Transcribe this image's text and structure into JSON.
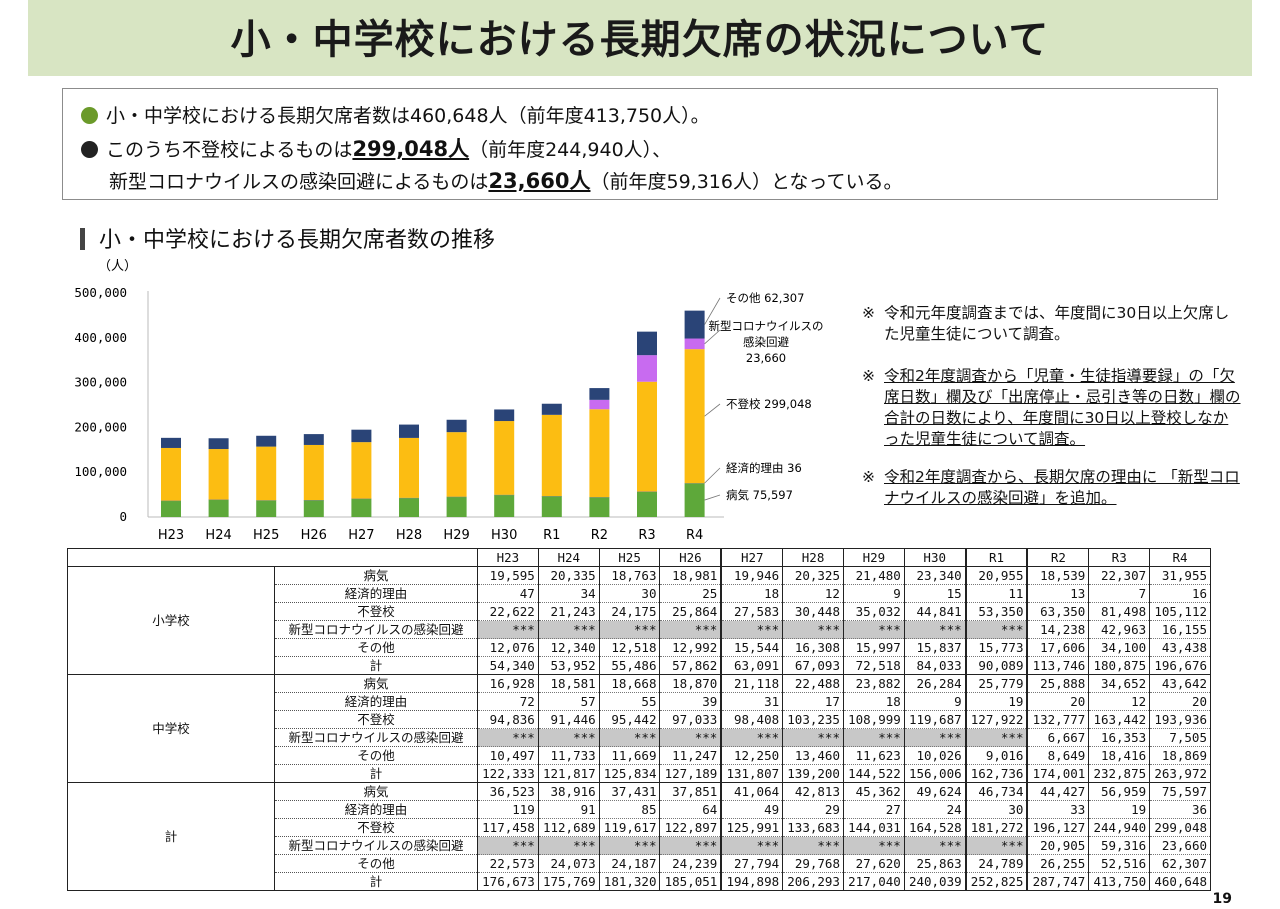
{
  "title": "小・中学校における長期欠席の状況について",
  "summary": {
    "line1": "小・中学校における長期欠席者数は460,648人（前年度413,750人）。",
    "line2_pre": "このうち不登校によるものは",
    "line2_big": "299,048人",
    "line2_post": "（前年度244,940人）、",
    "line3_pre": "新型コロナウイルスの感染回避によるものは",
    "line3_big": "23,660人",
    "line3_post": "（前年度59,316人）となっている。"
  },
  "section_title": "小・中学校における長期欠席者数の推移",
  "notes": [
    {
      "mark": "※",
      "text": "令和元年度調査までは、年度間に30日以上欠席した児童生徒について調査。",
      "underline": false
    },
    {
      "mark": "※",
      "text": "令和2年度調査から「児童・生徒指導要録」の「欠席日数」欄及び「出席停止・忌引き等の日数」欄の合計の日数により、年度間に30日以上登校しなかった児童生徒について調査。",
      "underline": true
    },
    {
      "mark": "※",
      "text": "令和2年度調査から、長期欠席の理由に 「新型コロナウイルスの感染回避」を追加。",
      "underline": true
    }
  ],
  "chart_data": {
    "type": "bar",
    "stacked": true,
    "unit_label": "（人）",
    "categories": [
      "H23",
      "H24",
      "H25",
      "H26",
      "H27",
      "H28",
      "H29",
      "H30",
      "R1",
      "R2",
      "R3",
      "R4"
    ],
    "yticks": [
      "0",
      "100,000",
      "200,000",
      "300,000",
      "400,000",
      "500,000"
    ],
    "ylim": [
      0,
      500000
    ],
    "series": [
      {
        "name": "病気",
        "color": "#5ea83a",
        "values": [
          36523,
          38916,
          37431,
          37851,
          41064,
          42813,
          45362,
          49624,
          46734,
          44427,
          56959,
          75597
        ]
      },
      {
        "name": "経済的理由",
        "color": "#8a8a8a",
        "values": [
          119,
          91,
          85,
          64,
          49,
          29,
          27,
          24,
          30,
          33,
          19,
          36
        ]
      },
      {
        "name": "不登校",
        "color": "#fcbd12",
        "values": [
          117458,
          112689,
          119617,
          122897,
          125991,
          133683,
          144031,
          164528,
          181272,
          196127,
          244940,
          299048
        ]
      },
      {
        "name": "新型コロナウイルスの感染回避",
        "color": "#c86bf0",
        "values": [
          0,
          0,
          0,
          0,
          0,
          0,
          0,
          0,
          0,
          20905,
          59316,
          23660
        ]
      },
      {
        "name": "その他",
        "color": "#2a4477",
        "values": [
          22573,
          24073,
          24187,
          24239,
          27794,
          29768,
          27620,
          25863,
          24789,
          26255,
          52516,
          62307
        ]
      }
    ],
    "annotations": [
      {
        "series": "その他",
        "text": "その他 62,307"
      },
      {
        "series": "新型コロナウイルスの感染回避",
        "lines": [
          "新型コロナウイルスの",
          "感染回避",
          "23,660"
        ]
      },
      {
        "series": "不登校",
        "text": "不登校 299,048"
      },
      {
        "series": "経済的理由",
        "text": "経済的理由 36"
      },
      {
        "series": "病気",
        "text": "病気 75,597"
      }
    ]
  },
  "table": {
    "years": [
      "H23",
      "H24",
      "H25",
      "H26",
      "H27",
      "H28",
      "H29",
      "H30",
      "R1",
      "R2",
      "R3",
      "R4"
    ],
    "groups": [
      {
        "name": "小学校",
        "rows": [
          {
            "label": "病気",
            "values": [
              "19,595",
              "20,335",
              "18,763",
              "18,981",
              "19,946",
              "20,325",
              "21,480",
              "23,340",
              "20,955",
              "18,539",
              "22,307",
              "31,955"
            ]
          },
          {
            "label": "経済的理由",
            "values": [
              "47",
              "34",
              "30",
              "25",
              "18",
              "12",
              "9",
              "15",
              "11",
              "13",
              "7",
              "16"
            ]
          },
          {
            "label": "不登校",
            "values": [
              "22,622",
              "21,243",
              "24,175",
              "25,864",
              "27,583",
              "30,448",
              "35,032",
              "44,841",
              "53,350",
              "63,350",
              "81,498",
              "105,112"
            ]
          },
          {
            "label": "新型コロナウイルスの感染回避",
            "values": [
              "***",
              "***",
              "***",
              "***",
              "***",
              "***",
              "***",
              "***",
              "***",
              "14,238",
              "42,963",
              "16,155"
            ]
          },
          {
            "label": "その他",
            "values": [
              "12,076",
              "12,340",
              "12,518",
              "12,992",
              "15,544",
              "16,308",
              "15,997",
              "15,837",
              "15,773",
              "17,606",
              "34,100",
              "43,438"
            ]
          },
          {
            "label": "計",
            "values": [
              "54,340",
              "53,952",
              "55,486",
              "57,862",
              "63,091",
              "67,093",
              "72,518",
              "84,033",
              "90,089",
              "113,746",
              "180,875",
              "196,676"
            ]
          }
        ]
      },
      {
        "name": "中学校",
        "rows": [
          {
            "label": "病気",
            "values": [
              "16,928",
              "18,581",
              "18,668",
              "18,870",
              "21,118",
              "22,488",
              "23,882",
              "26,284",
              "25,779",
              "25,888",
              "34,652",
              "43,642"
            ]
          },
          {
            "label": "経済的理由",
            "values": [
              "72",
              "57",
              "55",
              "39",
              "31",
              "17",
              "18",
              "9",
              "19",
              "20",
              "12",
              "20"
            ]
          },
          {
            "label": "不登校",
            "values": [
              "94,836",
              "91,446",
              "95,442",
              "97,033",
              "98,408",
              "103,235",
              "108,999",
              "119,687",
              "127,922",
              "132,777",
              "163,442",
              "193,936"
            ]
          },
          {
            "label": "新型コロナウイルスの感染回避",
            "values": [
              "***",
              "***",
              "***",
              "***",
              "***",
              "***",
              "***",
              "***",
              "***",
              "6,667",
              "16,353",
              "7,505"
            ]
          },
          {
            "label": "その他",
            "values": [
              "10,497",
              "11,733",
              "11,669",
              "11,247",
              "12,250",
              "13,460",
              "11,623",
              "10,026",
              "9,016",
              "8,649",
              "18,416",
              "18,869"
            ]
          },
          {
            "label": "計",
            "values": [
              "122,333",
              "121,817",
              "125,834",
              "127,189",
              "131,807",
              "139,200",
              "144,522",
              "156,006",
              "162,736",
              "174,001",
              "232,875",
              "263,972"
            ]
          }
        ]
      },
      {
        "name": "計",
        "rows": [
          {
            "label": "病気",
            "values": [
              "36,523",
              "38,916",
              "37,431",
              "37,851",
              "41,064",
              "42,813",
              "45,362",
              "49,624",
              "46,734",
              "44,427",
              "56,959",
              "75,597"
            ]
          },
          {
            "label": "経済的理由",
            "values": [
              "119",
              "91",
              "85",
              "64",
              "49",
              "29",
              "27",
              "24",
              "30",
              "33",
              "19",
              "36"
            ]
          },
          {
            "label": "不登校",
            "values": [
              "117,458",
              "112,689",
              "119,617",
              "122,897",
              "125,991",
              "133,683",
              "144,031",
              "164,528",
              "181,272",
              "196,127",
              "244,940",
              "299,048"
            ]
          },
          {
            "label": "新型コロナウイルスの感染回避",
            "values": [
              "***",
              "***",
              "***",
              "***",
              "***",
              "***",
              "***",
              "***",
              "***",
              "20,905",
              "59,316",
              "23,660"
            ]
          },
          {
            "label": "その他",
            "values": [
              "22,573",
              "24,073",
              "24,187",
              "24,239",
              "27,794",
              "29,768",
              "27,620",
              "25,863",
              "24,789",
              "26,255",
              "52,516",
              "62,307"
            ]
          },
          {
            "label": "計",
            "values": [
              "176,673",
              "175,769",
              "181,320",
              "185,051",
              "194,898",
              "206,293",
              "217,040",
              "240,039",
              "252,825",
              "287,747",
              "413,750",
              "460,648"
            ]
          }
        ]
      }
    ]
  },
  "page_number": "19"
}
